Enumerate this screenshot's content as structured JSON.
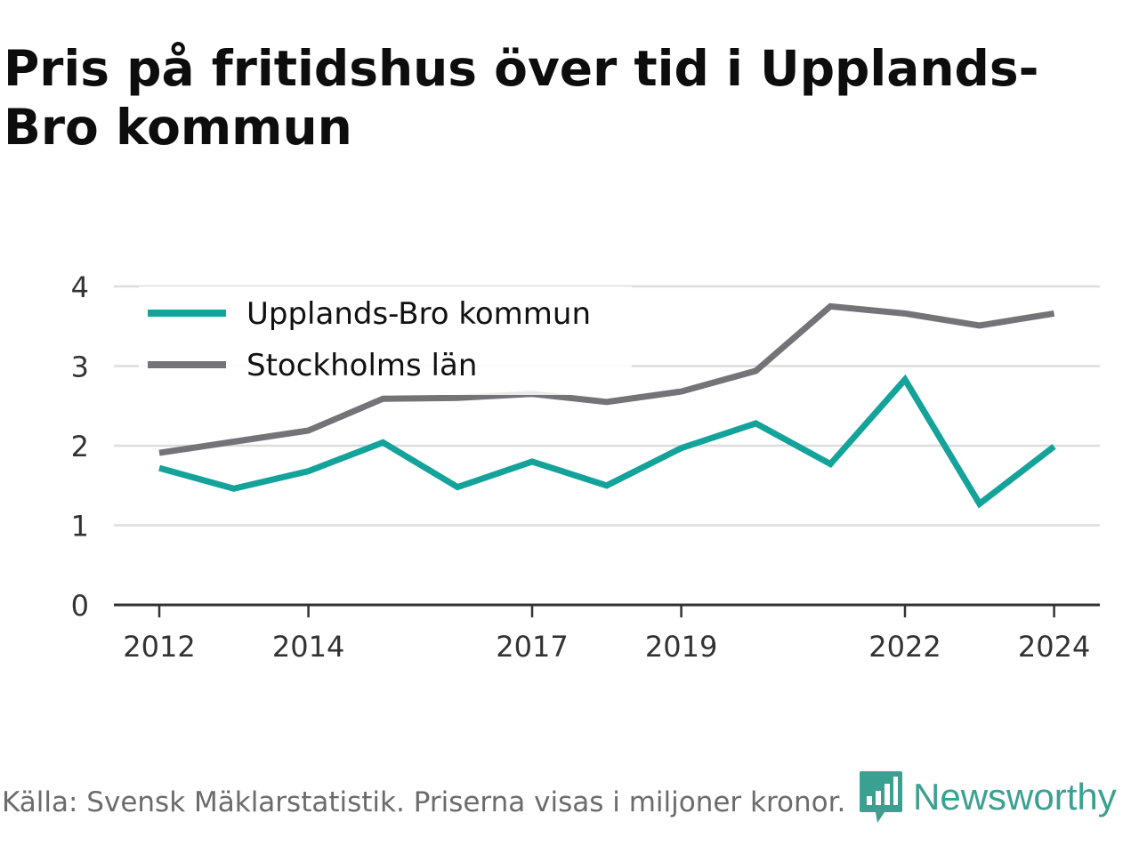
{
  "title": "Pris på fritidshus över tid i Upplands-Bro kommun",
  "footer": "Källa: Svensk Mäklarstatistik. Priserna visas i miljoner kronor.",
  "logo": {
    "text": "Newsworthy",
    "icon": "newsworthy-logo-icon",
    "color": "#3aa191"
  },
  "chart_data": {
    "type": "line",
    "title": "Pris på fritidshus över tid i Upplands-Bro kommun",
    "xlabel": "",
    "ylabel": "",
    "x": [
      2012,
      2013,
      2014,
      2015,
      2016,
      2017,
      2018,
      2019,
      2020,
      2021,
      2022,
      2023,
      2024
    ],
    "x_tick_labels": [
      "2012",
      "2014",
      "2017",
      "2019",
      "2022",
      "2024"
    ],
    "x_tick_values": [
      2012,
      2014,
      2017,
      2019,
      2022,
      2024
    ],
    "y_ticks": [
      0,
      1,
      2,
      3,
      4
    ],
    "ylim": [
      0,
      4
    ],
    "grid": true,
    "legend_position": "top-left",
    "series": [
      {
        "name": "Upplands-Bro kommun",
        "color": "#14a39a",
        "values": [
          1.72,
          1.46,
          1.68,
          2.04,
          1.48,
          1.8,
          1.5,
          1.97,
          2.28,
          1.77,
          2.83,
          1.27,
          1.99
        ]
      },
      {
        "name": "Stockholms län",
        "color": "#747378",
        "values": [
          1.91,
          2.05,
          2.19,
          2.59,
          2.6,
          2.65,
          2.55,
          2.68,
          2.94,
          3.75,
          3.66,
          3.51,
          3.66
        ]
      }
    ]
  }
}
